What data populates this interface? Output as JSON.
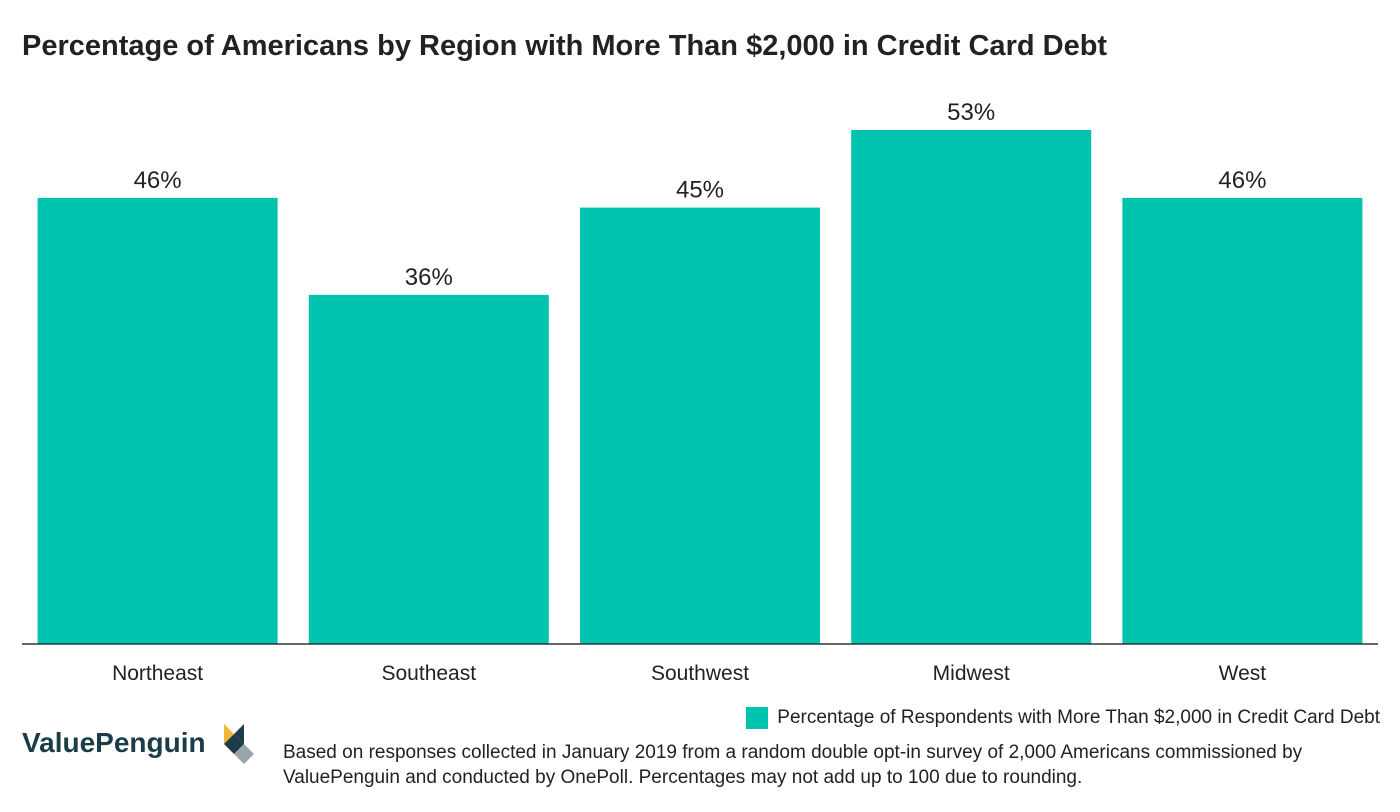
{
  "chart_data": {
    "type": "bar",
    "title": "Percentage of Americans by Region with More Than $2,000 in Credit Card Debt",
    "categories": [
      "Northeast",
      "Southeast",
      "Southwest",
      "Midwest",
      "West"
    ],
    "series": [
      {
        "name": "Percentage of Respondents with More Than $2,000 in Credit Card Debt",
        "values": [
          46,
          36,
          45,
          53,
          46
        ],
        "labels": [
          "46%",
          "36%",
          "45%",
          "53%",
          "46%"
        ],
        "color": "#00c4b0"
      }
    ],
    "ylim": [
      0,
      53
    ],
    "grid": false,
    "legend_position": "bottom-right"
  },
  "brand": {
    "name": "ValuePenguin"
  },
  "footnote": "Based on responses collected in January 2019 from a random double opt-in survey of 2,000 Americans commissioned by ValuePenguin and conducted by OnePoll. Percentages may not add up to 100 due to rounding.",
  "colors": {
    "bar": "#00c4b0",
    "axis": "#333333",
    "brand_dark": "#1d3c4a",
    "brand_gold": "#f2b733"
  }
}
